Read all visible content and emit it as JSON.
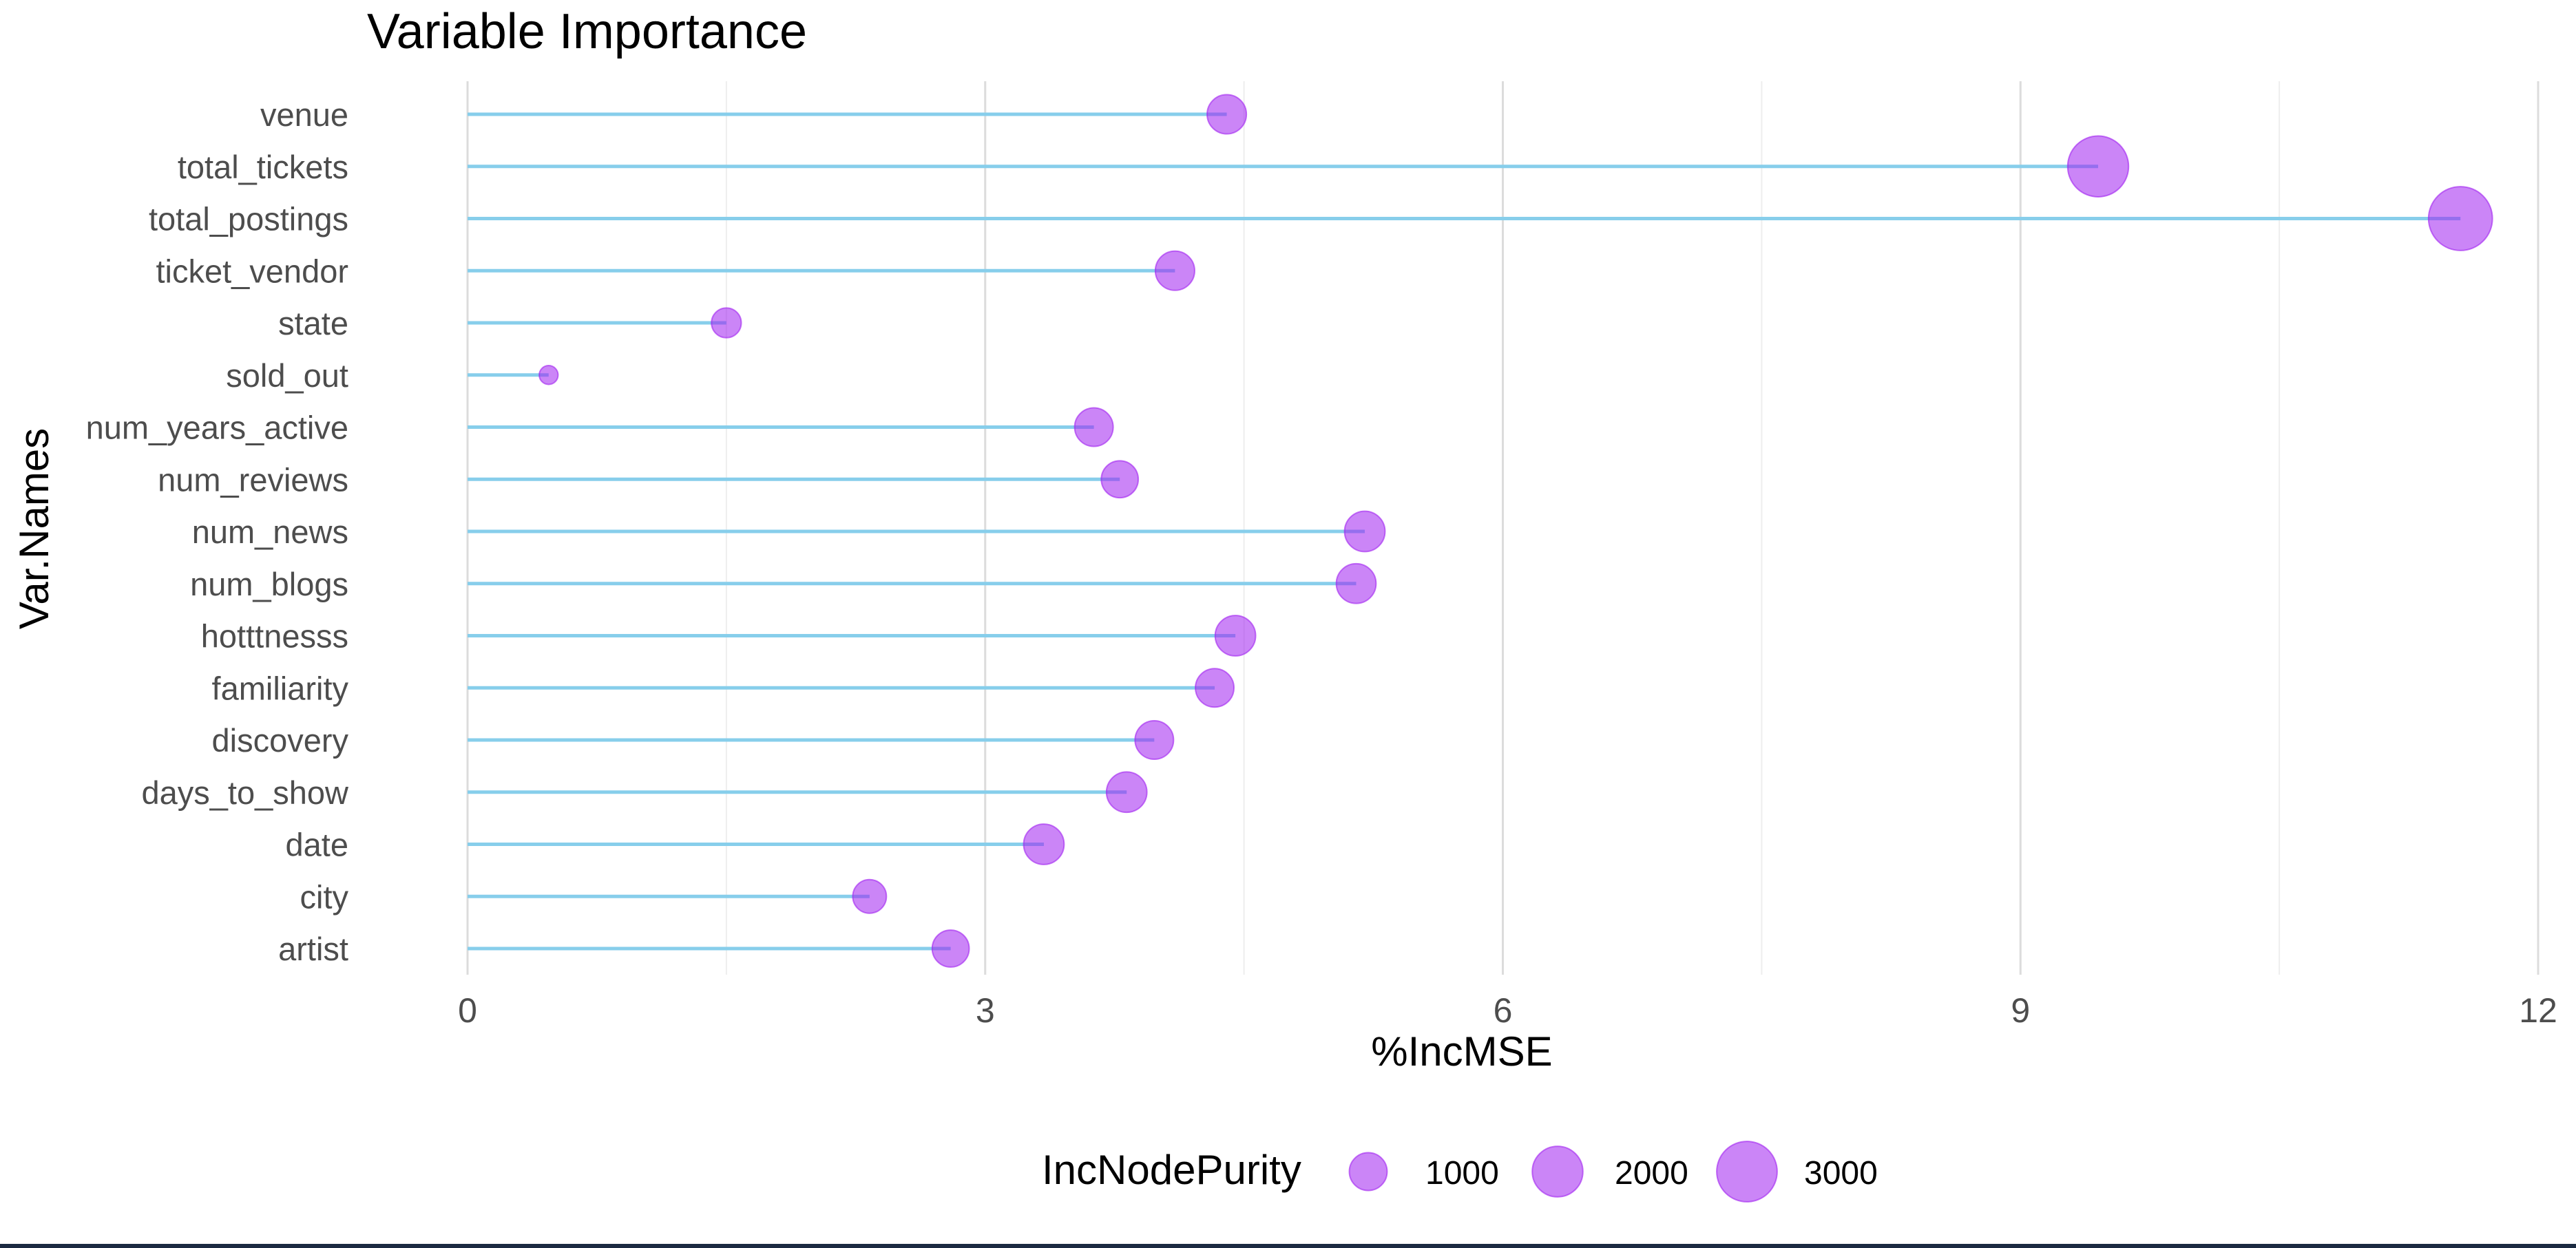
{
  "chart_data": {
    "type": "scatter",
    "title": "Variable Importance",
    "xlabel": "%IncMSE",
    "ylabel": "Var.Names",
    "xlim": [
      0,
      12
    ],
    "xticks": [
      0,
      3,
      6,
      9,
      12
    ],
    "grid": true,
    "legend_position": "bottom",
    "legend": {
      "title": "IncNodePurity",
      "entries": [
        {
          "label": "1000",
          "value": 1000
        },
        {
          "label": "2000",
          "value": 2000
        },
        {
          "label": "3000",
          "value": 3000
        }
      ]
    },
    "categories": [
      "venue",
      "total_tickets",
      "total_postings",
      "ticket_vendor",
      "state",
      "sold_out",
      "num_years_active",
      "num_reviews",
      "num_news",
      "num_blogs",
      "hotttnesss",
      "familiarity",
      "discovery",
      "days_to_show",
      "date",
      "city",
      "artist"
    ],
    "series": [
      {
        "x": [
          4.4,
          9.45,
          11.55,
          4.1,
          1.5,
          0.47,
          3.63,
          3.78,
          5.2,
          5.15,
          4.45,
          4.33,
          3.98,
          3.82,
          3.34,
          2.33,
          2.8
        ],
        "size": [
          1100,
          3050,
          3400,
          1100,
          550,
          150,
          1050,
          950,
          1180,
          1130,
          1180,
          1050,
          1050,
          1180,
          1180,
          750,
          950
        ]
      }
    ],
    "colors": {
      "stem": "#87ceeb",
      "point": "#a020f0",
      "grid": "#e3e3e3"
    }
  }
}
